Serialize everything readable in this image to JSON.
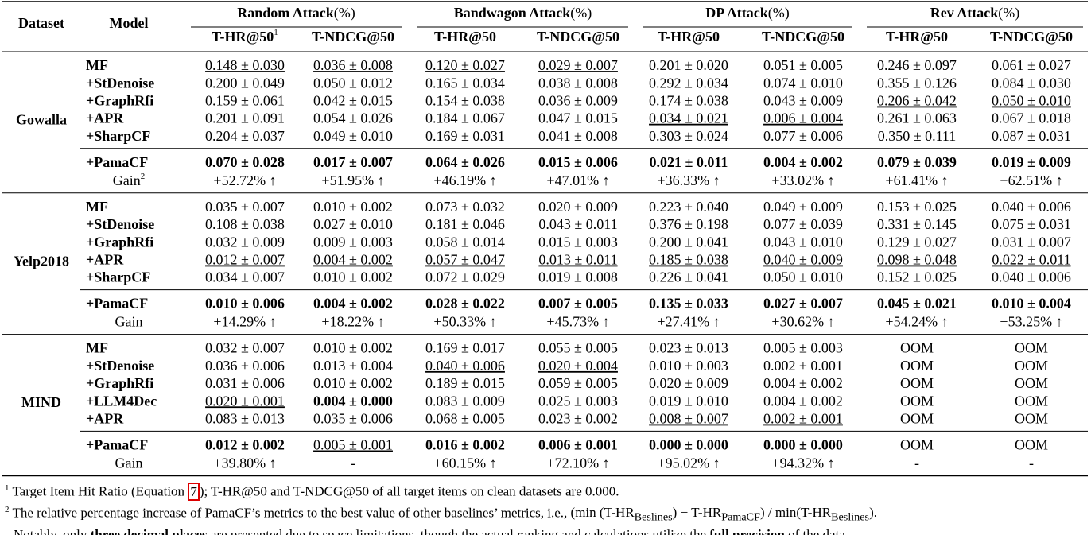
{
  "table": {
    "header": {
      "dataset": "Dataset",
      "model": "Model",
      "groups": [
        {
          "name": "Random Attack",
          "unit": "(%)"
        },
        {
          "name": "Bandwagon Attack",
          "unit": "(%)"
        },
        {
          "name": "DP Attack",
          "unit": "(%)"
        },
        {
          "name": "Rev Attack",
          "unit": "(%)"
        }
      ],
      "metrics": [
        "T-HR@50",
        "T-NDCG@50",
        "T-HR@50",
        "T-NDCG@50",
        "T-HR@50",
        "T-NDCG@50",
        "T-HR@50",
        "T-NDCG@50"
      ],
      "first_metric_mark": "1"
    },
    "sections": [
      {
        "dataset": "Gowalla",
        "baselines": [
          {
            "model": "MF",
            "cells": [
              "0.148 ± 0.030",
              "0.036 ± 0.008",
              "0.120 ± 0.027",
              "0.029 ± 0.007",
              "0.201 ± 0.020",
              "0.051 ± 0.005",
              "0.246 ± 0.097",
              "0.061 ± 0.027"
            ],
            "underline": [
              0,
              1,
              2,
              3
            ],
            "bold": []
          },
          {
            "model": "+StDenoise",
            "cells": [
              "0.200 ± 0.049",
              "0.050 ± 0.012",
              "0.165 ± 0.034",
              "0.038 ± 0.008",
              "0.292 ± 0.034",
              "0.074 ± 0.010",
              "0.355 ± 0.126",
              "0.084 ± 0.030"
            ],
            "underline": [],
            "bold": []
          },
          {
            "model": "+GraphRfi",
            "cells": [
              "0.159 ± 0.061",
              "0.042 ± 0.015",
              "0.154 ± 0.038",
              "0.036 ± 0.009",
              "0.174 ± 0.038",
              "0.043 ± 0.009",
              "0.206 ± 0.042",
              "0.050 ± 0.010"
            ],
            "underline": [
              6,
              7
            ],
            "bold": []
          },
          {
            "model": "+APR",
            "cells": [
              "0.201 ± 0.091",
              "0.054 ± 0.026",
              "0.184 ± 0.067",
              "0.047 ± 0.015",
              "0.034 ± 0.021",
              "0.006 ± 0.004",
              "0.261 ± 0.063",
              "0.067 ± 0.018"
            ],
            "underline": [
              4,
              5
            ],
            "bold": []
          },
          {
            "model": "+SharpCF",
            "cells": [
              "0.204 ± 0.037",
              "0.049 ± 0.010",
              "0.169 ± 0.031",
              "0.041 ± 0.008",
              "0.303 ± 0.024",
              "0.077 ± 0.006",
              "0.350 ± 0.111",
              "0.087 ± 0.031"
            ],
            "underline": [],
            "bold": []
          }
        ],
        "ours": {
          "model": "+PamaCF",
          "cells": [
            "0.070 ± 0.028",
            "0.017 ± 0.007",
            "0.064 ± 0.026",
            "0.015 ± 0.006",
            "0.021 ± 0.011",
            "0.004 ± 0.002",
            "0.079 ± 0.039",
            "0.019 ± 0.009"
          ],
          "underline": [],
          "bold": [
            0,
            1,
            2,
            3,
            4,
            5,
            6,
            7
          ]
        },
        "gain": {
          "label": "Gain",
          "mark": "2",
          "cells": [
            "+52.72% ↑",
            "+51.95% ↑",
            "+46.19% ↑",
            "+47.01% ↑",
            "+36.33% ↑",
            "+33.02% ↑",
            "+61.41% ↑",
            "+62.51% ↑"
          ]
        }
      },
      {
        "dataset": "Yelp2018",
        "baselines": [
          {
            "model": "MF",
            "cells": [
              "0.035 ± 0.007",
              "0.010 ± 0.002",
              "0.073 ± 0.032",
              "0.020 ± 0.009",
              "0.223 ± 0.040",
              "0.049 ± 0.009",
              "0.153 ± 0.025",
              "0.040 ± 0.006"
            ],
            "underline": [],
            "bold": []
          },
          {
            "model": "+StDenoise",
            "cells": [
              "0.108 ± 0.038",
              "0.027 ± 0.010",
              "0.181 ± 0.046",
              "0.043 ± 0.011",
              "0.376 ± 0.198",
              "0.077 ± 0.039",
              "0.331 ± 0.145",
              "0.075 ± 0.031"
            ],
            "underline": [],
            "bold": []
          },
          {
            "model": "+GraphRfi",
            "cells": [
              "0.032 ± 0.009",
              "0.009 ± 0.003",
              "0.058 ± 0.014",
              "0.015 ± 0.003",
              "0.200 ± 0.041",
              "0.043 ± 0.010",
              "0.129 ± 0.027",
              "0.031 ± 0.007"
            ],
            "underline": [],
            "bold": []
          },
          {
            "model": "+APR",
            "cells": [
              "0.012 ± 0.007",
              "0.004 ± 0.002",
              "0.057 ± 0.047",
              "0.013 ± 0.011",
              "0.185 ± 0.038",
              "0.040 ± 0.009",
              "0.098 ± 0.048",
              "0.022 ± 0.011"
            ],
            "underline": [
              0,
              1,
              2,
              3,
              4,
              5,
              6,
              7
            ],
            "bold": []
          },
          {
            "model": "+SharpCF",
            "cells": [
              "0.034 ± 0.007",
              "0.010 ± 0.002",
              "0.072 ± 0.029",
              "0.019 ± 0.008",
              "0.226 ± 0.041",
              "0.050 ± 0.010",
              "0.152 ± 0.025",
              "0.040 ± 0.006"
            ],
            "underline": [],
            "bold": []
          }
        ],
        "ours": {
          "model": "+PamaCF",
          "cells": [
            "0.010 ± 0.006",
            "0.004 ± 0.002",
            "0.028 ± 0.022",
            "0.007 ± 0.005",
            "0.135 ± 0.033",
            "0.027 ± 0.007",
            "0.045 ± 0.021",
            "0.010 ± 0.004"
          ],
          "underline": [],
          "bold": [
            0,
            1,
            2,
            3,
            4,
            5,
            6,
            7
          ]
        },
        "gain": {
          "label": "Gain",
          "cells": [
            "+14.29% ↑",
            "+18.22% ↑",
            "+50.33% ↑",
            "+45.73% ↑",
            "+27.41% ↑",
            "+30.62% ↑",
            "+54.24% ↑",
            "+53.25% ↑"
          ]
        }
      },
      {
        "dataset": "MIND",
        "baselines": [
          {
            "model": "MF",
            "cells": [
              "0.032 ± 0.007",
              "0.010 ± 0.002",
              "0.169 ± 0.017",
              "0.055 ± 0.005",
              "0.023 ± 0.013",
              "0.005 ± 0.003",
              "OOM",
              "OOM"
            ],
            "underline": [],
            "bold": []
          },
          {
            "model": "+StDenoise",
            "cells": [
              "0.036 ± 0.006",
              "0.013 ± 0.004",
              "0.040 ± 0.006",
              "0.020 ± 0.004",
              "0.010 ± 0.003",
              "0.002 ± 0.001",
              "OOM",
              "OOM"
            ],
            "underline": [
              2,
              3
            ],
            "bold": []
          },
          {
            "model": "+GraphRfi",
            "cells": [
              "0.031 ± 0.006",
              "0.010 ± 0.002",
              "0.189 ± 0.015",
              "0.059 ± 0.005",
              "0.020 ± 0.009",
              "0.004 ± 0.002",
              "OOM",
              "OOM"
            ],
            "underline": [],
            "bold": []
          },
          {
            "model": "+LLM4Dec",
            "cells": [
              "0.020 ± 0.001",
              "0.004 ± 0.000",
              "0.083 ± 0.009",
              "0.025 ± 0.003",
              "0.019 ± 0.010",
              "0.004 ± 0.002",
              "OOM",
              "OOM"
            ],
            "underline": [
              0
            ],
            "bold": [
              1
            ]
          },
          {
            "model": "+APR",
            "cells": [
              "0.083 ± 0.013",
              "0.035 ± 0.006",
              "0.068 ± 0.005",
              "0.023 ± 0.002",
              "0.008 ± 0.007",
              "0.002 ± 0.001",
              "OOM",
              "OOM"
            ],
            "underline": [
              4,
              5
            ],
            "bold": []
          }
        ],
        "ours": {
          "model": "+PamaCF",
          "cells": [
            "0.012 ± 0.002",
            "0.005 ± 0.001",
            "0.016 ± 0.002",
            "0.006 ± 0.001",
            "0.000 ± 0.000",
            "0.000 ± 0.000",
            "OOM",
            "OOM"
          ],
          "underline": [
            1
          ],
          "bold": [
            0,
            2,
            3,
            4,
            5
          ]
        },
        "gain": {
          "label": "Gain",
          "cells": [
            "+39.80% ↑",
            "-",
            "+60.15% ↑",
            "+72.10% ↑",
            "+95.02% ↑",
            "+94.32% ↑",
            "-",
            "-"
          ]
        }
      }
    ]
  },
  "footnotes": [
    {
      "mark": "1",
      "before": "Target Item Hit Ratio (Equation ",
      "ref": "7",
      "after": "); T-HR@50 and T-NDCG@50 of all target items on clean datasets are 0.000."
    },
    {
      "mark": "2",
      "text": "The relative percentage increase of PamaCF’s metrics to the best value of other baselines’ metrics, i.e., ",
      "formula": [
        "(min (T-HR",
        "Beslines",
        ") − T-HR",
        "PamaCF",
        ") / min(T-HR",
        "Beslines",
        ")."
      ]
    },
    {
      "parts": [
        "Notably, only ",
        "three decimal places",
        " are presented due to space limitations, though the actual ranking and calculations utilize the ",
        "full precision",
        " of the data."
      ]
    }
  ]
}
